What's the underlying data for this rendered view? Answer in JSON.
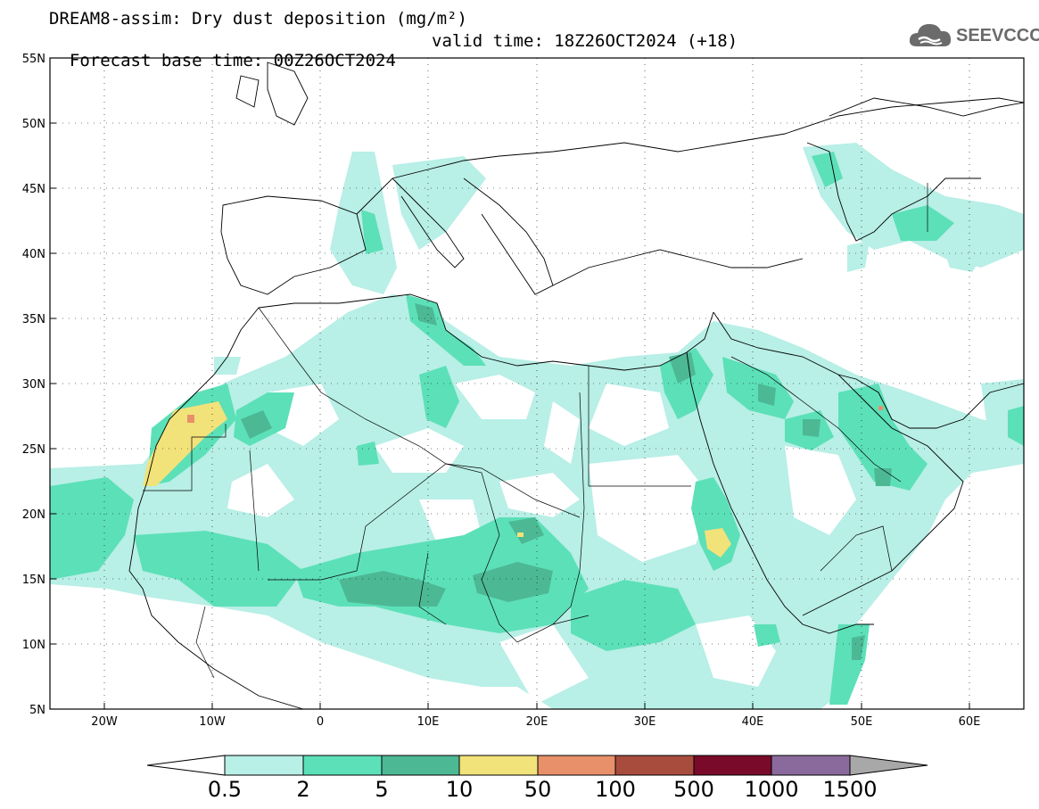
{
  "header": {
    "title_line1": "DREAM8-assim: Dry dust deposition (mg/m²)",
    "base_time": "Forecast base time: 00Z26OCT2024",
    "valid_time": "valid time: 18Z26OCT2024 (+18)"
  },
  "logo": {
    "text": "SEEVCCC",
    "icon": "cloud-logo-icon"
  },
  "map": {
    "lat_labels": [
      "55N",
      "50N",
      "45N",
      "40N",
      "35N",
      "30N",
      "25N",
      "20N",
      "15N",
      "10N",
      "5N"
    ],
    "lon_labels": [
      "20W",
      "10W",
      "0",
      "10E",
      "20E",
      "30E",
      "40E",
      "50E",
      "60E"
    ],
    "lat_range": [
      5,
      55
    ],
    "lon_range": [
      -25,
      65
    ],
    "grid": "dotted"
  },
  "colorbar": {
    "labels": [
      "0.5",
      "2",
      "5",
      "10",
      "50",
      "100",
      "500",
      "1000",
      "1500"
    ],
    "colors": [
      "#b8efe6",
      "#5ce0b8",
      "#4db894",
      "#f2e27a",
      "#e8906a",
      "#a84d3e",
      "#7a0a2a",
      "#8a6a9c",
      "#a8a8a8"
    ],
    "lower_color": "#ffffff"
  }
}
